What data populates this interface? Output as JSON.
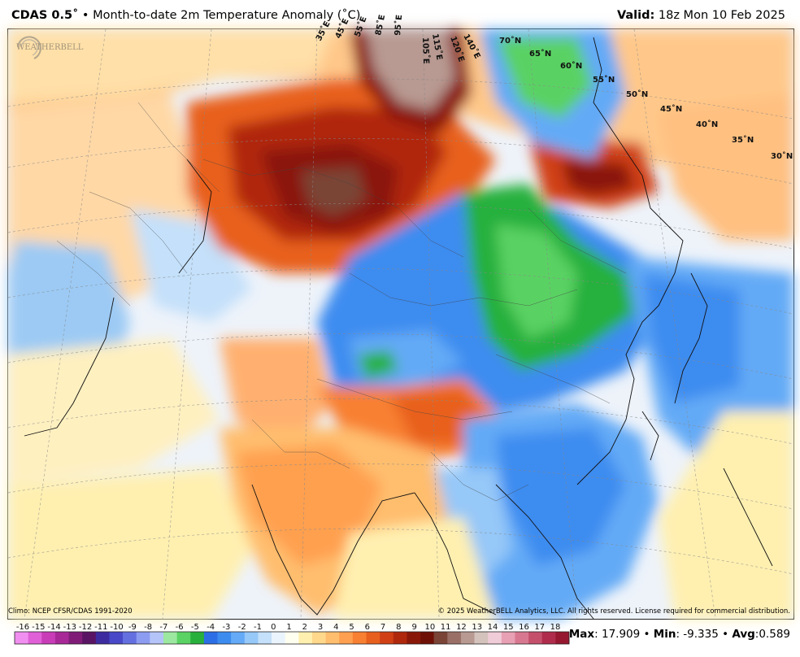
{
  "header": {
    "model": "CDAS 0.5˚",
    "separator": " • ",
    "description": "Month-to-date 2m Temperature Anomaly (˚C)",
    "valid_label": "Valid:",
    "valid_time": " 18z Mon 10 Feb 2025"
  },
  "map": {
    "lat_labels": [
      "70˚N",
      "65˚N",
      "60˚N",
      "55˚N",
      "50˚N",
      "45˚N",
      "40˚N",
      "35˚N",
      "30˚N"
    ],
    "lon_labels": [
      "35˚E",
      "45˚E",
      "55˚E",
      "85˚E",
      "95˚E",
      "105˚E",
      "115˚E",
      "120˚E",
      "140˚E"
    ],
    "watermark": "WEATHERBELL"
  },
  "footer": {
    "climo": "Climo: NCEP CFSR/CDAS 1991-2020",
    "copyright": "© 2025 WeatherBELL Analytics, LLC. All rights reserved. License required for commercial distribution."
  },
  "colorbar": {
    "ticks": [
      "-16",
      "-15",
      "-14",
      "-13",
      "-12",
      "-11",
      "-10",
      "-9",
      "-8",
      "-7",
      "-6",
      "-5",
      "-4",
      "-3",
      "-2",
      "-1",
      "0",
      "1",
      "2",
      "3",
      "4",
      "5",
      "6",
      "7",
      "8",
      "9",
      "10",
      "11",
      "12",
      "13",
      "14",
      "15",
      "16",
      "17",
      "18"
    ],
    "colors": [
      "#f18ff0",
      "#e060d8",
      "#c83cb8",
      "#a82898",
      "#801c78",
      "#5a1464",
      "#3c2ca0",
      "#4848c8",
      "#6470e0",
      "#8c9cf0",
      "#b4c4f8",
      "#9ce8a0",
      "#5ad264",
      "#28b03c",
      "#2c6ee6",
      "#3c8cf0",
      "#64aaf6",
      "#96c8f8",
      "#c4e0fa",
      "#eaf4fc",
      "#fffff0",
      "#fff0b0",
      "#ffd88c",
      "#ffbe6e",
      "#ffa050",
      "#f88032",
      "#e8601e",
      "#d04014",
      "#b0280c",
      "#8a1808",
      "#6e1006",
      "#7a4436",
      "#9a7066",
      "#b89a92",
      "#d4c2bc",
      "#f0ccd8",
      "#e8a0b4",
      "#d87890",
      "#c4506c",
      "#b02c4c",
      "#961830"
    ]
  },
  "stats": {
    "max_label": "Max",
    "max_value": ": 17.909",
    "min_label": "Min",
    "min_value": ": -9.335",
    "avg_label": "Avg",
    "avg_value": ":0.589",
    "sep": " • "
  }
}
